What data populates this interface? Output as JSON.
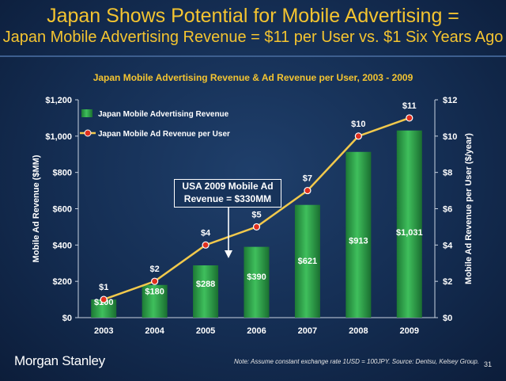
{
  "header": {
    "title_line1": "Japan Shows Potential for Mobile Advertising =",
    "title_line2": "Japan Mobile Advertising Revenue = $11 per User vs. $1 Six Years Ago"
  },
  "chart_data": {
    "type": "bar+line",
    "title": "Japan Mobile Advertising Revenue & Ad Revenue per User, 2003 - 2009",
    "categories": [
      "2003",
      "2004",
      "2005",
      "2006",
      "2007",
      "2008",
      "2009"
    ],
    "series": [
      {
        "name": "Japan Mobile Advertising Revenue",
        "type": "bar",
        "axis": "left",
        "values": [
          100,
          180,
          288,
          390,
          621,
          913,
          1031
        ],
        "labels": [
          "$100",
          "$180",
          "$288",
          "$390",
          "$621",
          "$913",
          "$1,031"
        ]
      },
      {
        "name": "Japan Mobile Ad Revenue per User",
        "type": "line",
        "axis": "right",
        "values": [
          1,
          2,
          4,
          5,
          7,
          10,
          11
        ],
        "labels": [
          "$1",
          "$2",
          "$4",
          "$5",
          "$7",
          "$10",
          "$11"
        ]
      }
    ],
    "ylabel": "Mobile Ad Revenue ($MM)",
    "y2label": "Mobile Ad Revenue per User ($/year)",
    "ylim": [
      0,
      1200
    ],
    "y2lim": [
      0,
      12
    ],
    "yticks": [
      "$0",
      "$200",
      "$400",
      "$600",
      "$800",
      "$1,000",
      "$1,200"
    ],
    "y2ticks": [
      "$0",
      "$2",
      "$4",
      "$6",
      "$8",
      "$10",
      "$12"
    ],
    "legend_position": "top-left",
    "annotation": {
      "line1": "USA 2009 Mobile Ad",
      "line2": "Revenue = $330MM"
    },
    "colors": {
      "bar": "#2e9e4a",
      "line": "#f2c94c",
      "marker": "#e0301e"
    }
  },
  "footer": {
    "logo": "Morgan Stanley",
    "note": "Note: Assume constant exchange rate 1USD = 100JPY. Source: Dentsu, Kelsey Group.",
    "page": "31"
  }
}
